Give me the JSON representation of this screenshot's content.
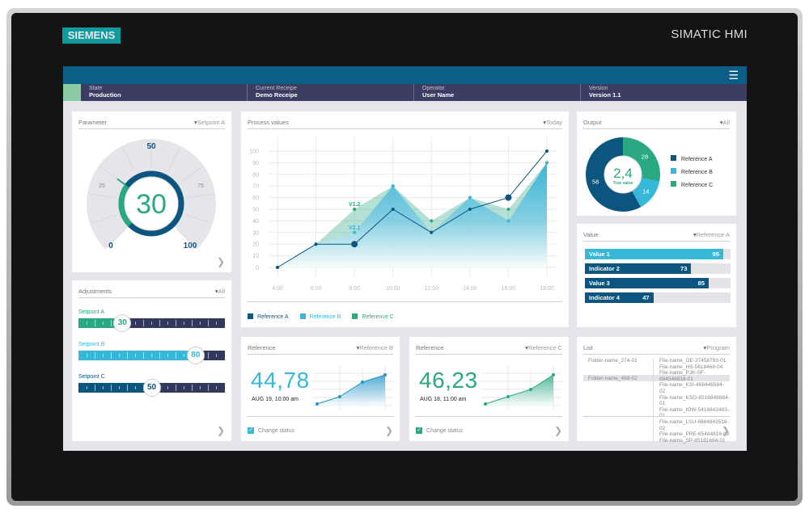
{
  "device": {
    "logo": "SIEMENS",
    "model": "SIMATIC HMI"
  },
  "topbar": {
    "menu_icon": "hamburger-icon",
    "color": "#0b5f86"
  },
  "status": [
    {
      "label": "State",
      "value": "Production"
    },
    {
      "label": "Current Receipe",
      "value": "Demo Receipe"
    },
    {
      "label": "Operator",
      "value": "User Name"
    },
    {
      "label": "Version",
      "value": "Version 1.1"
    }
  ],
  "colors": {
    "ref_a": "#0b557f",
    "ref_b": "#37b8d9",
    "ref_c": "#2aa883",
    "track": "#33375c"
  },
  "parameter": {
    "title": "Parameter",
    "dropdown": "Setpoint A",
    "value": 30,
    "value_text": "30",
    "min": 0,
    "max": 100,
    "ticks": [
      "0",
      "25",
      "50",
      "75",
      "100"
    ]
  },
  "adjustments": {
    "title": "Adjustments",
    "dropdown": "All",
    "sliders": [
      {
        "label": "Setpoint A",
        "value": 30,
        "text": "30"
      },
      {
        "label": "Setpoint B",
        "value": 80,
        "text": "80"
      },
      {
        "label": "Setpoint C",
        "value": 50,
        "text": "50"
      }
    ]
  },
  "process": {
    "title": "Process values",
    "dropdown": "Today"
  },
  "chart_data": {
    "type": "area",
    "x": [
      "4:00",
      "6:00",
      "8:00",
      "10:00",
      "12:00",
      "14:00",
      "16:00",
      "18:00"
    ],
    "ylim": [
      0,
      100
    ],
    "yticks": [
      "0",
      "10",
      "20",
      "30",
      "40",
      "50",
      "60",
      "70",
      "80",
      "90",
      "100"
    ],
    "grid": true,
    "legend": "bottom-left",
    "series": [
      {
        "name": "Reference A",
        "values": [
          0,
          20,
          20,
          50,
          30,
          50,
          60,
          100
        ]
      },
      {
        "name": "Reference B",
        "values": [
          0,
          20,
          30,
          70,
          30,
          60,
          40,
          90
        ]
      },
      {
        "name": "Reference C",
        "values": [
          0,
          20,
          50,
          70,
          40,
          60,
          50,
          90
        ]
      }
    ],
    "annotations": [
      {
        "text": "V1.2",
        "x": "8:00",
        "y": 50
      },
      {
        "text": "V2.1",
        "x": "8:00",
        "y": 30
      }
    ]
  },
  "output": {
    "title": "Output",
    "dropdown": "All",
    "center_value": "2,4",
    "center_label": "True value",
    "slices": [
      {
        "name": "Reference C",
        "value": 28,
        "label": "28"
      },
      {
        "name": "Reference B",
        "value": 14,
        "label": "14"
      },
      {
        "name": "Reference A",
        "value": 58,
        "label": "58"
      }
    ],
    "legend": [
      "Reference A",
      "Reference B",
      "Reference C"
    ]
  },
  "value": {
    "title": "Value",
    "dropdown": "Reference A",
    "bars": [
      {
        "label": "Value 1",
        "value": 95,
        "text": "95"
      },
      {
        "label": "Indicator 2",
        "value": 73,
        "text": "73"
      },
      {
        "label": "Value 3",
        "value": 85,
        "text": "85"
      },
      {
        "label": "Indicator 4",
        "value": 47,
        "text": "47"
      }
    ]
  },
  "ref_b": {
    "title": "Reference",
    "dropdown": "Reference B",
    "value": "44,78",
    "date": "AUG 19, 10:00 am",
    "checkbox": "Change status",
    "checked": true,
    "trend": [
      0,
      25,
      75,
      100
    ]
  },
  "ref_c": {
    "title": "Reference",
    "dropdown": "Reference C",
    "value": "46,23",
    "date": "AUG 18, 11:00 am",
    "checkbox": "Change status",
    "checked": true,
    "trend": [
      0,
      25,
      50,
      100
    ]
  },
  "list": {
    "title": "List",
    "dropdown": "Program",
    "folders": [
      "Folder-name_274-01",
      "Folder-name_468-02"
    ],
    "files": [
      "File-name_GE-27458793-01",
      "File-name_HS-5618468-04",
      "File-name_PJK-SF-694546618-01",
      "File-name_KSI-468446584-02",
      "File-name_KSO-6516848684-01",
      "File-name_IOW-5416843483-01",
      "File-name_LSU-6684843518-02",
      "File-name_PRE-65484816-03",
      "File-name_SP-65181684-01"
    ]
  }
}
